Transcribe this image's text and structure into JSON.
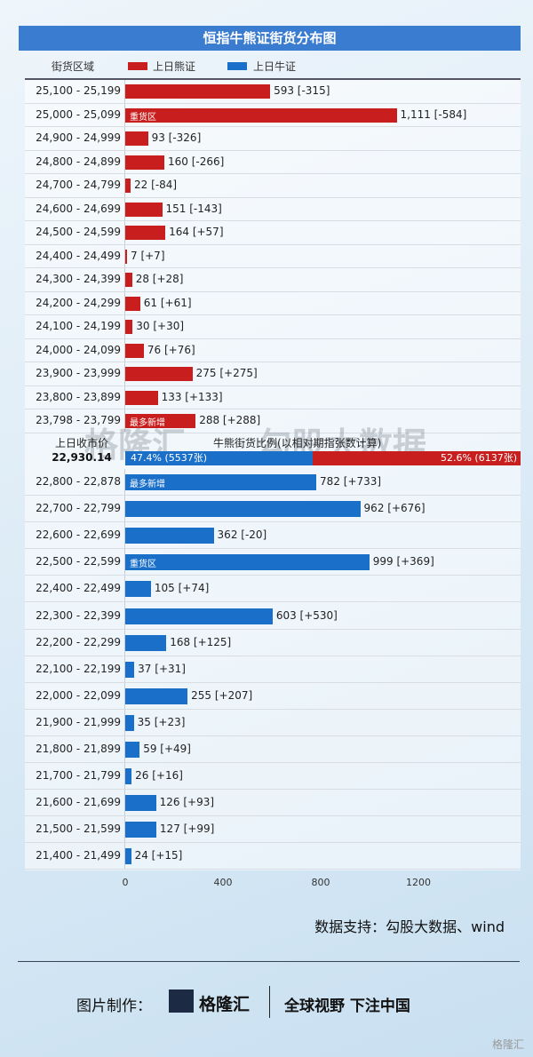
{
  "title": "恒指牛熊证街货分布图",
  "legend": {
    "range_label": "街货区域",
    "bear": "上日熊证",
    "bull": "上日牛证"
  },
  "colors": {
    "bear": "#c81e1e",
    "bull": "#1a6fc9",
    "header": "#3a7cd0"
  },
  "mid": {
    "close_label": "上日收市价",
    "close_value": "22,930.14",
    "ratio_label": "牛熊街货比例(以相对期指张数计算)",
    "bull_ratio": "47.4% (5537张)",
    "bear_ratio": "52.6% (6137张)",
    "bull_pct": 47.4
  },
  "watermark": {
    "brand": "格隆汇",
    "data": "勾股大数据"
  },
  "source": "数据支持：勾股大数据、wind",
  "footer": {
    "made_by": "图片制作：",
    "brand": "格隆汇",
    "slogan": "全球视野 下注中国",
    "corner": "格隆汇"
  },
  "chart_data": {
    "type": "bar",
    "title": "恒指牛熊证街货分布图",
    "xlim": [
      0,
      1200
    ],
    "xticks": [
      "0",
      "400",
      "800",
      "1200"
    ],
    "series": [
      {
        "name": "上日熊证",
        "rows": [
          {
            "range": "25,100 - 25,199",
            "value": 593,
            "label": "593 [-315]"
          },
          {
            "range": "25,000 - 25,099",
            "value": 1111,
            "label": "1,111 [-584]",
            "tag": "重货区"
          },
          {
            "range": "24,900 - 24,999",
            "value": 93,
            "label": "93 [-326]"
          },
          {
            "range": "24,800 - 24,899",
            "value": 160,
            "label": "160 [-266]"
          },
          {
            "range": "24,700 - 24,799",
            "value": 22,
            "label": "22 [-84]"
          },
          {
            "range": "24,600 - 24,699",
            "value": 151,
            "label": "151 [-143]"
          },
          {
            "range": "24,500 - 24,599",
            "value": 164,
            "label": "164 [+57]"
          },
          {
            "range": "24,400 - 24,499",
            "value": 7,
            "label": "7 [+7]"
          },
          {
            "range": "24,300 - 24,399",
            "value": 28,
            "label": "28 [+28]"
          },
          {
            "range": "24,200 - 24,299",
            "value": 61,
            "label": "61 [+61]"
          },
          {
            "range": "24,100 - 24,199",
            "value": 30,
            "label": "30 [+30]"
          },
          {
            "range": "24,000 - 24,099",
            "value": 76,
            "label": "76 [+76]"
          },
          {
            "range": "23,900 - 23,999",
            "value": 275,
            "label": "275 [+275]"
          },
          {
            "range": "23,800 - 23,899",
            "value": 133,
            "label": "133 [+133]"
          },
          {
            "range": "23,798 - 23,799",
            "value": 288,
            "label": "288 [+288]",
            "tag": "最多新增"
          }
        ]
      },
      {
        "name": "上日牛证",
        "rows": [
          {
            "range": "22,800 - 22,878",
            "value": 782,
            "label": "782 [+733]",
            "tag": "最多新增"
          },
          {
            "range": "22,700 - 22,799",
            "value": 962,
            "label": "962 [+676]"
          },
          {
            "range": "22,600 - 22,699",
            "value": 362,
            "label": "362 [-20]"
          },
          {
            "range": "22,500 - 22,599",
            "value": 999,
            "label": "999 [+369]",
            "tag": "重货区"
          },
          {
            "range": "22,400 - 22,499",
            "value": 105,
            "label": "105 [+74]"
          },
          {
            "range": "22,300 - 22,399",
            "value": 603,
            "label": "603 [+530]"
          },
          {
            "range": "22,200 - 22,299",
            "value": 168,
            "label": "168 [+125]"
          },
          {
            "range": "22,100 - 22,199",
            "value": 37,
            "label": "37 [+31]"
          },
          {
            "range": "22,000 - 22,099",
            "value": 255,
            "label": "255 [+207]"
          },
          {
            "range": "21,900 - 21,999",
            "value": 35,
            "label": "35 [+23]"
          },
          {
            "range": "21,800 - 21,899",
            "value": 59,
            "label": "59 [+49]"
          },
          {
            "range": "21,700 - 21,799",
            "value": 26,
            "label": "26 [+16]"
          },
          {
            "range": "21,600 - 21,699",
            "value": 126,
            "label": "126 [+93]"
          },
          {
            "range": "21,500 - 21,599",
            "value": 127,
            "label": "127 [+99]"
          },
          {
            "range": "21,400 - 21,499",
            "value": 24,
            "label": "24 [+15]"
          }
        ]
      }
    ]
  }
}
